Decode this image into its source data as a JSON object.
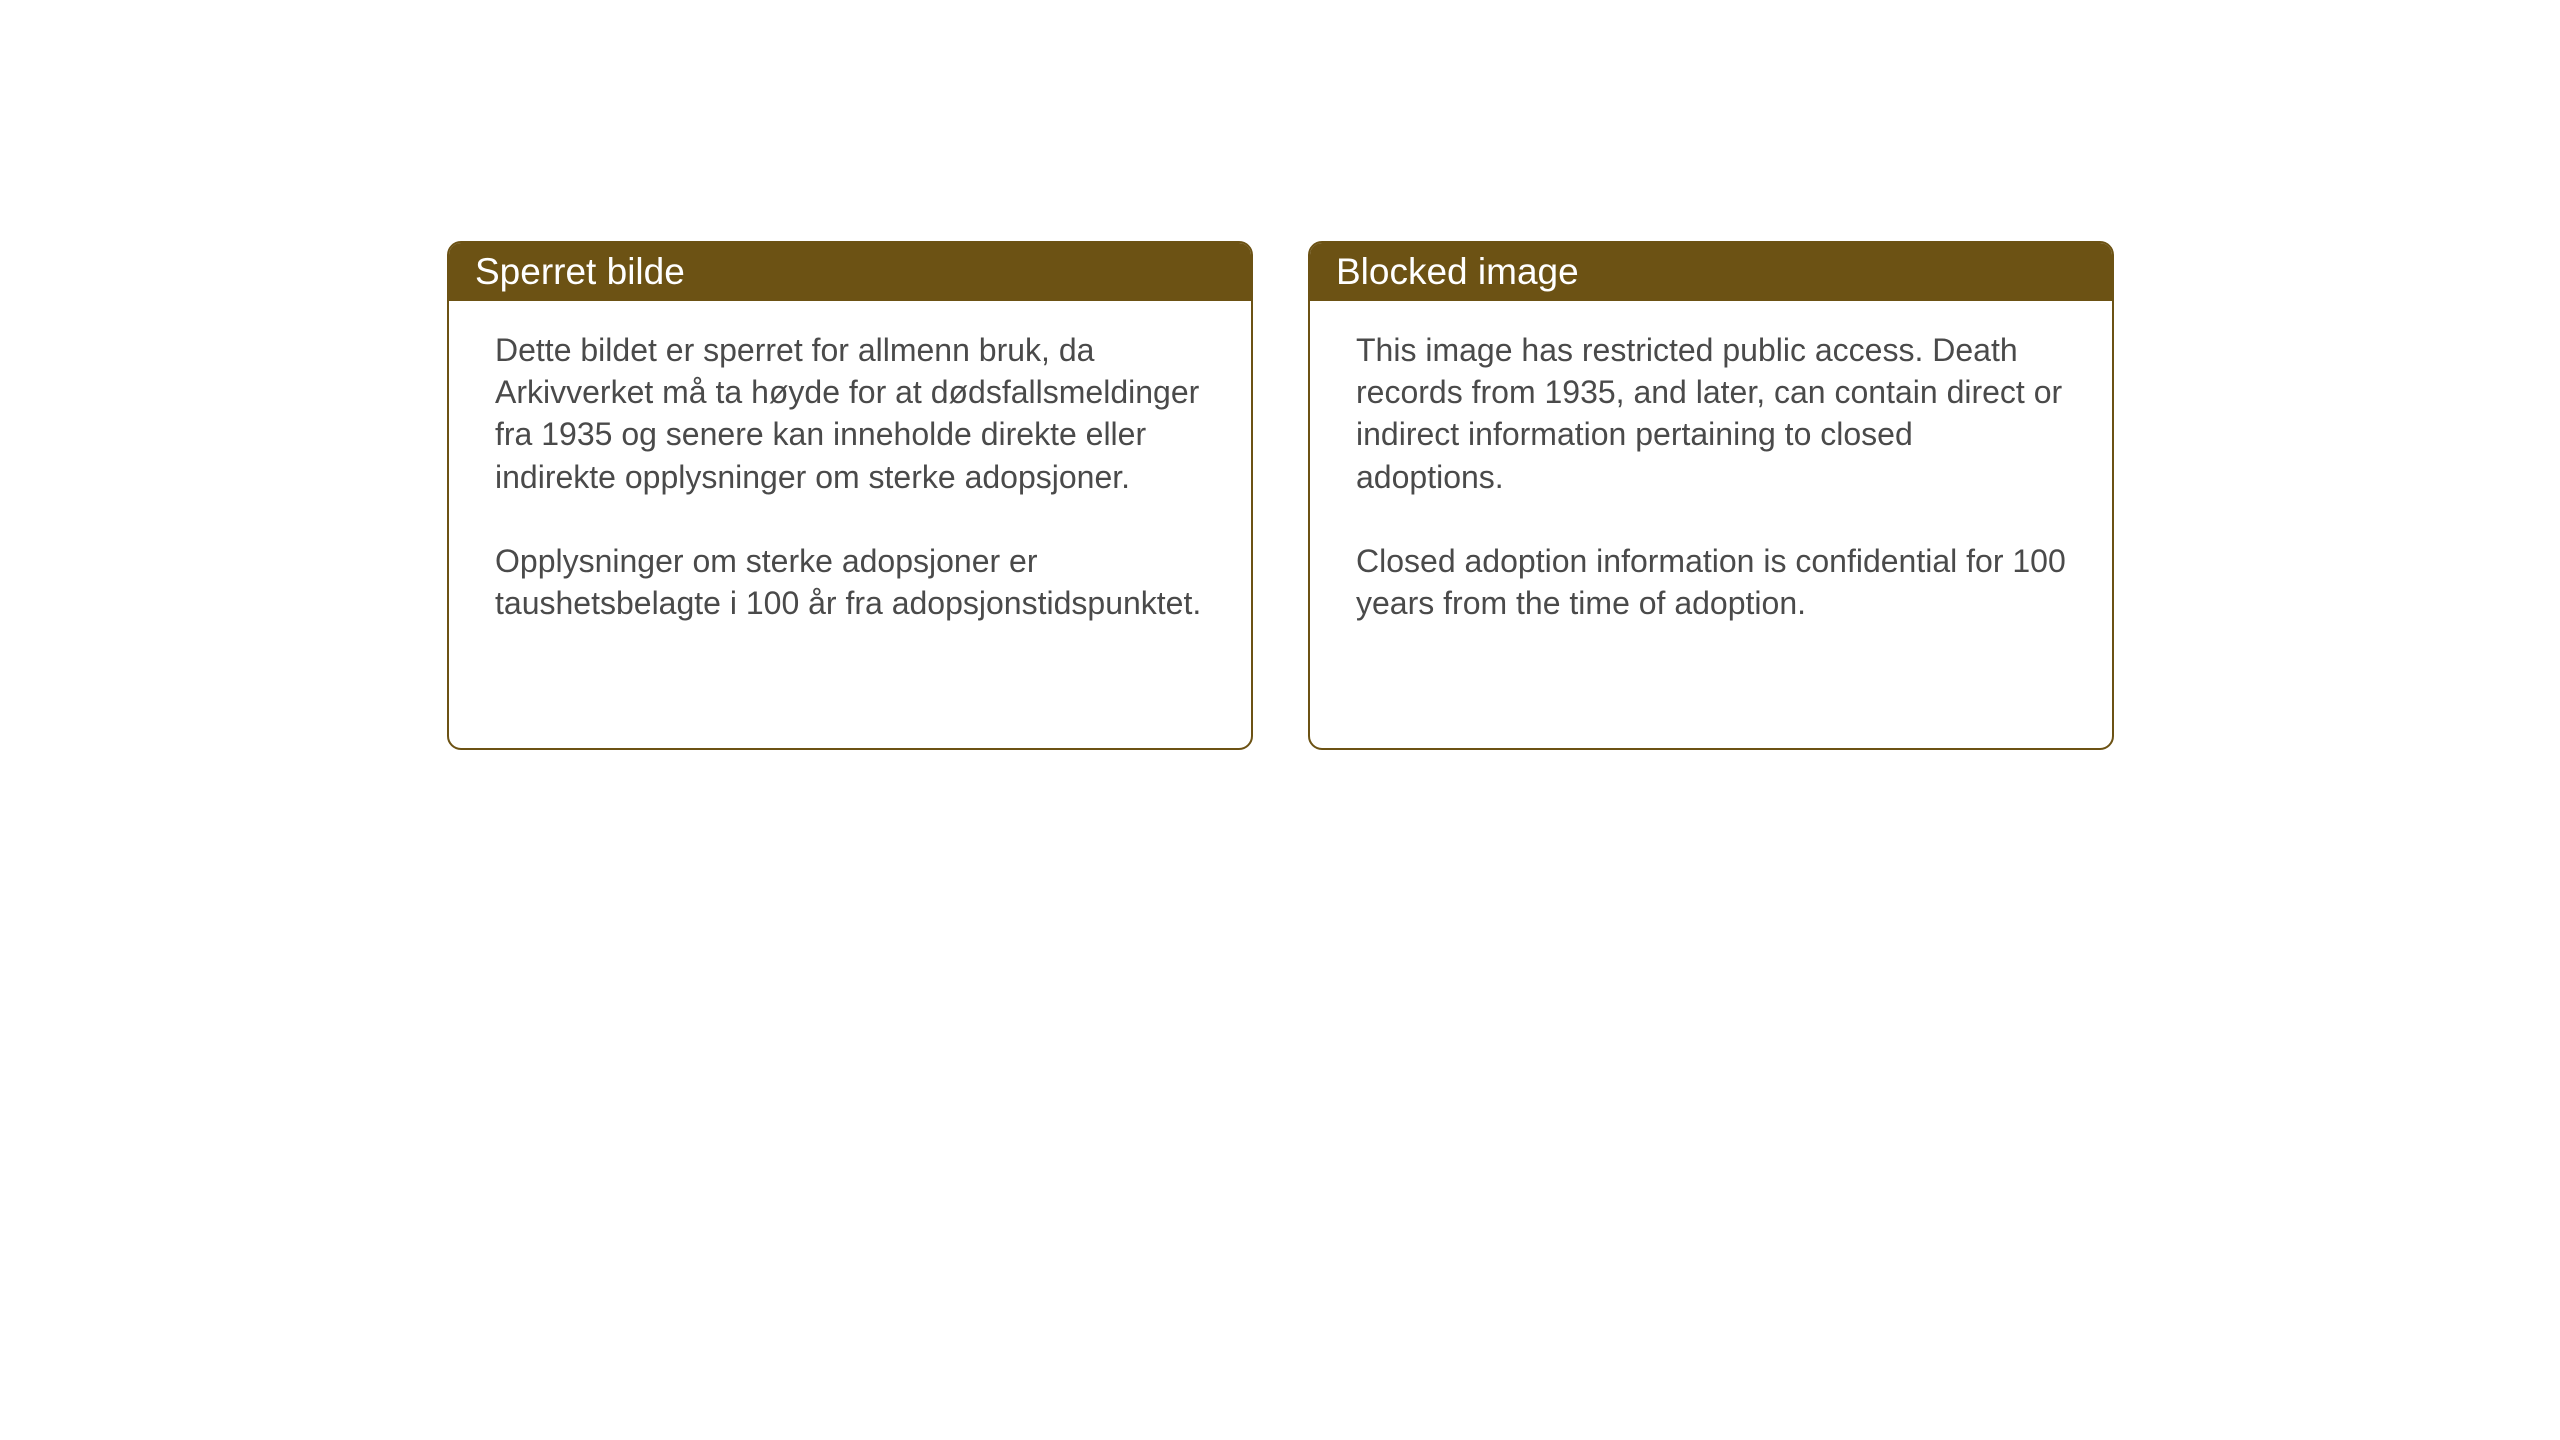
{
  "layout": {
    "background_color": "#ffffff",
    "card_border_color": "#6c5214",
    "card_header_bg": "#6c5214",
    "card_header_text_color": "#ffffff",
    "card_body_text_color": "#4a4a4a",
    "card_border_radius": 14,
    "header_fontsize": 37,
    "body_fontsize": 32
  },
  "cards": {
    "left": {
      "title": "Sperret bilde",
      "paragraph1": "Dette bildet er sperret for allmenn bruk, da Arkivverket må ta høyde for at dødsfalls­meldinger fra 1935 og senere kan inneholde direkte eller indirekte opplysninger om sterke adopsjoner.",
      "paragraph2": "Opplysninger om sterke adopsjoner er taushetsbelagte i 100 år fra adopsjons­tidspunktet."
    },
    "right": {
      "title": "Blocked image",
      "paragraph1": "This image has restricted public access. Death records from 1935, and later, can contain direct or indirect information pertaining to closed adoptions.",
      "paragraph2": "Closed adoption information is confidential for 100 years from the time of adoption."
    }
  }
}
